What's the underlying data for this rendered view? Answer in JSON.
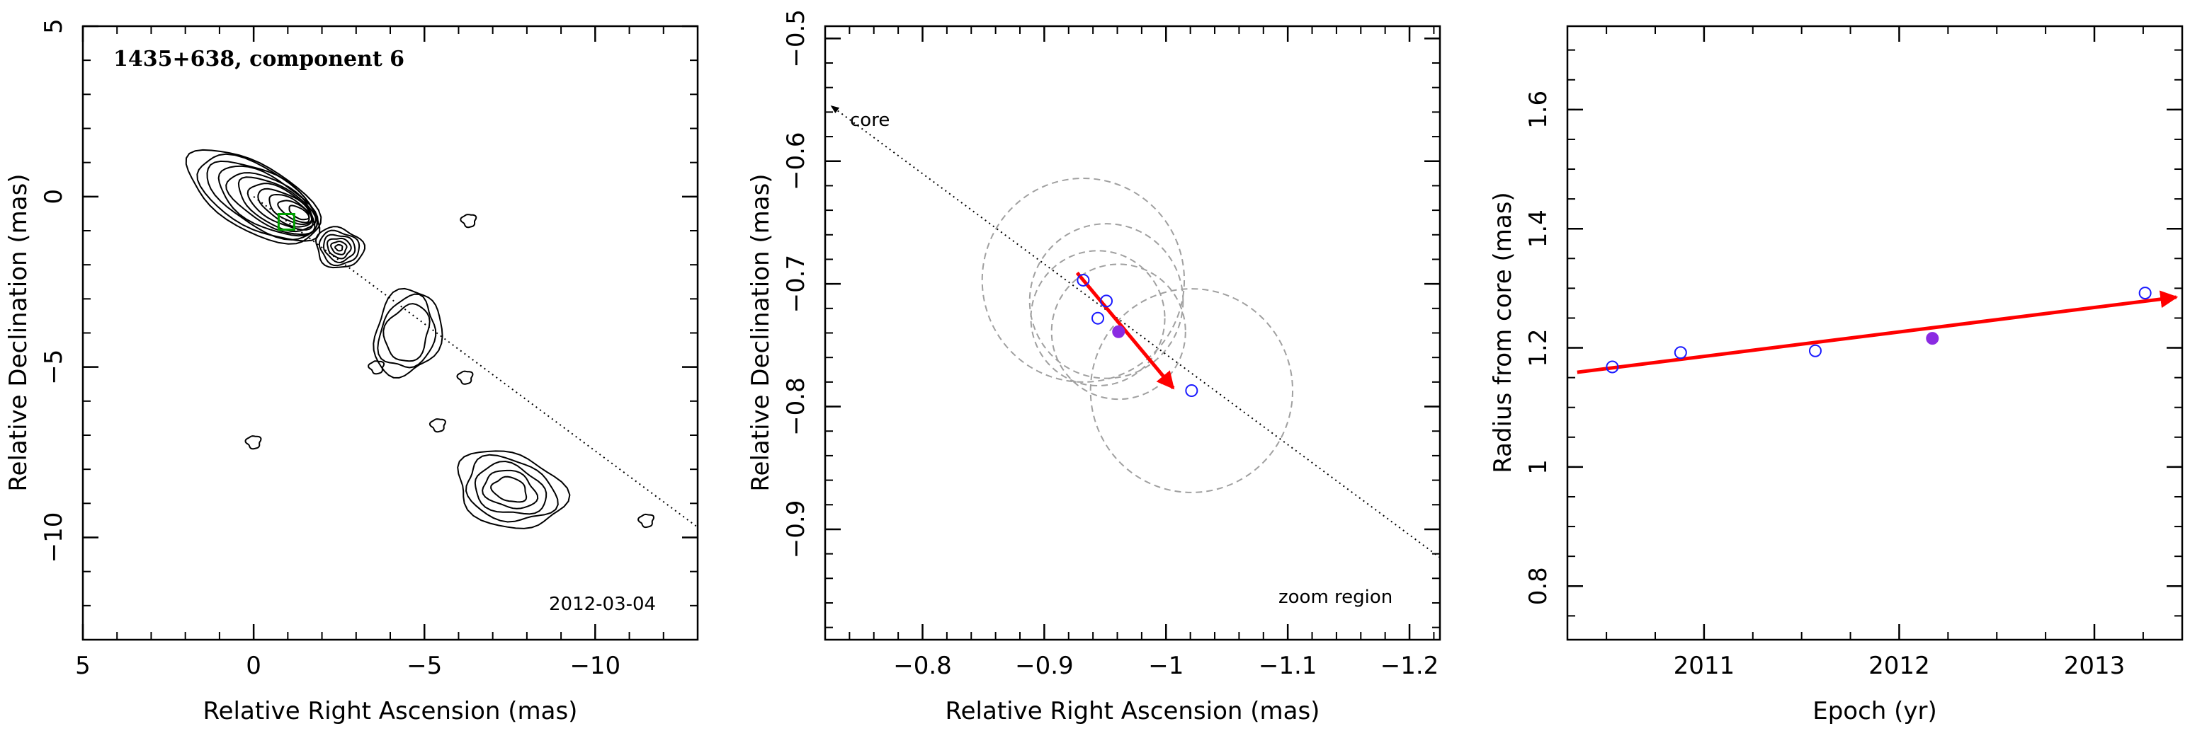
{
  "chart_data": [
    {
      "type": "contour",
      "title": "1435+638, component 6",
      "date_label": "2012-03-04",
      "xlabel": "Relative Right Ascension (mas)",
      "ylabel": "Relative Declination (mas)",
      "xlim": [
        5,
        -13
      ],
      "ylim": [
        -13,
        5
      ],
      "xticks": [
        {
          "v": 5,
          "label": "5"
        },
        {
          "v": 0,
          "label": "0"
        },
        {
          "v": -5,
          "label": "−5"
        },
        {
          "v": -10,
          "label": "−10"
        }
      ],
      "yticks": [
        {
          "v": 5,
          "label": "5"
        },
        {
          "v": 0,
          "label": "0"
        },
        {
          "v": -5,
          "label": "−5"
        },
        {
          "v": -10,
          "label": "−10"
        }
      ],
      "jet_axis_line": {
        "x": [
          0,
          -13
        ],
        "y": [
          0,
          -9.7
        ]
      },
      "component_marker": {
        "x": -0.96,
        "y": -0.74
      },
      "core_blob": {
        "x": 0,
        "y": 0
      },
      "knots": [
        {
          "x": -2.5,
          "y": -1.5
        },
        {
          "x": -4.5,
          "y": -4.0
        },
        {
          "x": -7.5,
          "y": -8.6
        }
      ],
      "speckles": [
        {
          "x": -11.5,
          "y": -9.5
        },
        {
          "x": -6.2,
          "y": -5.3
        },
        {
          "x": -5.4,
          "y": -6.7
        },
        {
          "x": 0,
          "y": -7.2
        },
        {
          "x": -3.6,
          "y": -5.0
        },
        {
          "x": -6.3,
          "y": -0.7
        }
      ]
    },
    {
      "type": "scatter",
      "xlabel": "Relative Right Ascension (mas)",
      "ylabel": "Relative Declination (mas)",
      "xlim": [
        -0.72,
        -1.225
      ],
      "ylim": [
        -0.99,
        -0.49
      ],
      "xticks": [
        {
          "v": -0.8,
          "label": "−0.8"
        },
        {
          "v": -0.9,
          "label": "−0.9"
        },
        {
          "v": -1,
          "label": "−1"
        },
        {
          "v": -1.1,
          "label": "−1.1"
        },
        {
          "v": -1.2,
          "label": "−1.2"
        }
      ],
      "yticks": [
        {
          "v": -0.5,
          "label": "−0.5"
        },
        {
          "v": -0.6,
          "label": "−0.6"
        },
        {
          "v": -0.7,
          "label": "−0.7"
        },
        {
          "v": -0.8,
          "label": "−0.8"
        },
        {
          "v": -0.9,
          "label": "−0.9"
        }
      ],
      "core_label": "core",
      "zoom_label": "zoom region",
      "points": [
        {
          "x": -0.932,
          "y": -0.697,
          "filled": false
        },
        {
          "x": -0.944,
          "y": -0.728,
          "filled": false
        },
        {
          "x": -0.951,
          "y": -0.714,
          "filled": false
        },
        {
          "x": -0.961,
          "y": -0.739,
          "filled": true
        },
        {
          "x": -1.021,
          "y": -0.787,
          "filled": false
        }
      ],
      "error_circles": [
        {
          "x": -0.932,
          "y": -0.697,
          "r": 0.083
        },
        {
          "x": -0.944,
          "y": -0.728,
          "r": 0.055
        },
        {
          "x": -0.951,
          "y": -0.714,
          "r": 0.063
        },
        {
          "x": -0.961,
          "y": -0.739,
          "r": 0.055
        },
        {
          "x": -1.021,
          "y": -0.787,
          "r": 0.083
        }
      ],
      "velocity_vector": {
        "x0": -0.927,
        "y0": -0.691,
        "x1": -1.006,
        "y1": -0.785
      },
      "jet_axis_line": {
        "x0": -0.725,
        "y0": -0.555,
        "x1": -1.225,
        "y1": -0.923
      }
    },
    {
      "type": "scatter",
      "xlabel": "Epoch (yr)",
      "ylabel": "Radius from core (mas)",
      "xlim": [
        2010.3,
        2013.45
      ],
      "ylim": [
        0.71,
        1.74
      ],
      "xticks": [
        {
          "v": 2011,
          "label": "2011"
        },
        {
          "v": 2012,
          "label": "2012"
        },
        {
          "v": 2013,
          "label": "2013"
        }
      ],
      "yticks": [
        {
          "v": 0.8,
          "label": "0.8"
        },
        {
          "v": 1,
          "label": "1"
        },
        {
          "v": 1.2,
          "label": "1.2"
        },
        {
          "v": 1.4,
          "label": "1.4"
        },
        {
          "v": 1.6,
          "label": "1.6"
        }
      ],
      "points": [
        {
          "x": 2010.53,
          "y": 1.168,
          "filled": false
        },
        {
          "x": 2010.88,
          "y": 1.192,
          "filled": false
        },
        {
          "x": 2011.57,
          "y": 1.195,
          "filled": false
        },
        {
          "x": 2012.17,
          "y": 1.216,
          "filled": true
        },
        {
          "x": 2013.26,
          "y": 1.292,
          "filled": false
        }
      ],
      "fit_line": {
        "x0": 2010.35,
        "y0": 1.159,
        "x1": 2013.42,
        "y1": 1.285
      },
      "colors": {
        "points": "#1a1aff",
        "filled_point": "#8a2be2",
        "fit": "#ff0000",
        "circles": "#a0a0a0"
      }
    }
  ]
}
